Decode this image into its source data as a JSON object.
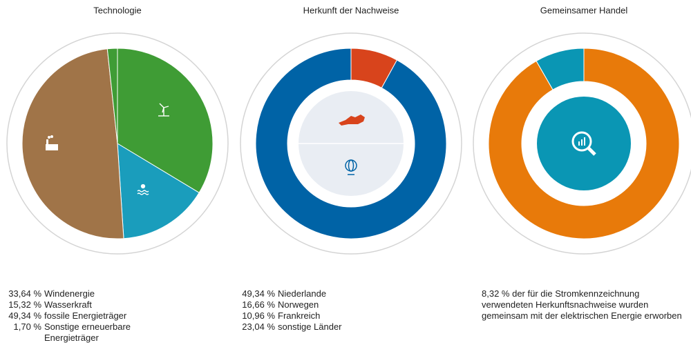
{
  "chart_data": [
    {
      "type": "pie",
      "title": "Technologie",
      "series": [
        {
          "name": "Windenergie",
          "color": "#3f9c35"
        },
        {
          "name": "Wasserkraft",
          "color": "#1a9dbc"
        },
        {
          "name": "fossile Energieträger",
          "color": "#a07448"
        },
        {
          "name": "Sonstige erneuerbare Energieträger",
          "color": "#3f9c35"
        }
      ],
      "values": [
        33.64,
        15.32,
        49.34,
        1.7
      ],
      "value_labels": [
        "33,64 %",
        "15,32 %",
        "49,34 %",
        "1,70 %"
      ]
    },
    {
      "type": "donut",
      "title": "Herkunft der Nachweise",
      "values": [
        8,
        92
      ],
      "colors": [
        "#d8441c",
        "#0063a6"
      ],
      "legend": [
        {
          "value_label": "49,34 %",
          "name": "Niederlande"
        },
        {
          "value_label": "16,66 %",
          "name": "Norwegen"
        },
        {
          "value_label": "10,96 %",
          "name": "Frankreich"
        },
        {
          "value_label": "23,04 %",
          "name": "sonstige Länder"
        }
      ]
    },
    {
      "type": "donut",
      "title": "Gemeinsamer Handel",
      "values": [
        91.68,
        8.32
      ],
      "colors": [
        "#e87a0a",
        "#0a96b4"
      ],
      "description": "8,32 % der für die Stromkennzeichnung verwendeten Herkunftsnachweise wurden gemeinsam mit der elektrischen Energie erworben"
    }
  ]
}
